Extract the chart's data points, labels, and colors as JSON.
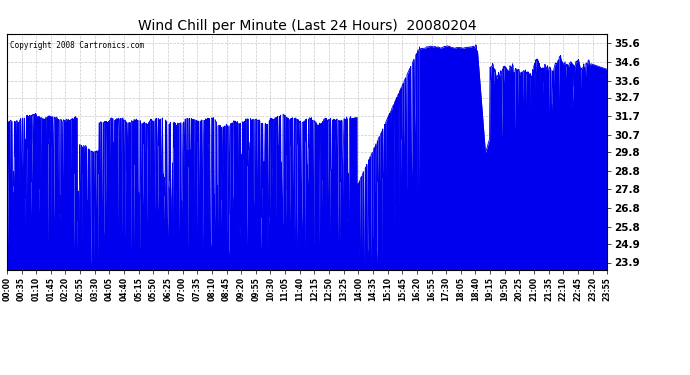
{
  "title": "Wind Chill per Minute (Last 24 Hours)  20080204",
  "copyright": "Copyright 2008 Cartronics.com",
  "line_color": "#0000EE",
  "bg_color": "#FFFFFF",
  "plot_bg_color": "#FFFFFF",
  "grid_color": "#BBBBBB",
  "y_ticks": [
    23.9,
    24.9,
    25.8,
    26.8,
    27.8,
    28.8,
    29.8,
    30.7,
    31.7,
    32.7,
    33.6,
    34.6,
    35.6
  ],
  "ylim": [
    23.5,
    36.1
  ],
  "x_tick_labels": [
    "00:00",
    "00:35",
    "01:10",
    "01:45",
    "02:20",
    "02:55",
    "03:30",
    "04:05",
    "04:40",
    "05:15",
    "05:50",
    "06:25",
    "07:00",
    "07:35",
    "08:10",
    "08:45",
    "09:20",
    "09:55",
    "10:30",
    "11:05",
    "11:40",
    "12:15",
    "12:50",
    "13:25",
    "14:00",
    "14:35",
    "15:10",
    "15:45",
    "16:20",
    "16:55",
    "17:30",
    "18:05",
    "18:40",
    "19:15",
    "19:50",
    "20:25",
    "21:00",
    "21:35",
    "22:10",
    "22:45",
    "23:20",
    "23:55"
  ],
  "num_minutes": 1440,
  "figsize": [
    6.9,
    3.75
  ],
  "dpi": 100
}
